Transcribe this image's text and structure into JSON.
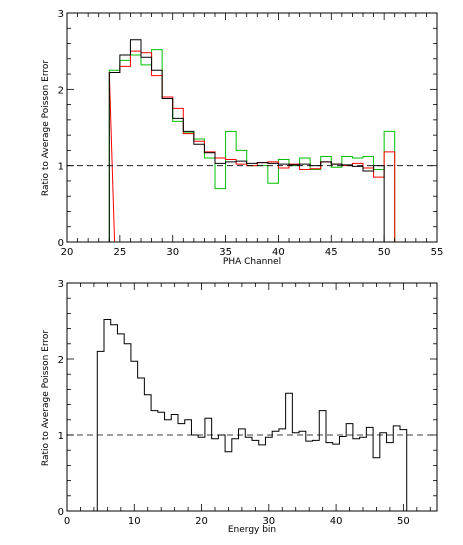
{
  "colors": {
    "black_series": "#000000",
    "red_series": "#ff0000",
    "green_series": "#00c000",
    "reference_line": "#000000"
  },
  "chart_data": [
    {
      "type": "line",
      "step": "histogram",
      "xlabel": "PHA Channel",
      "ylabel": "Ratio to Average Poisson Error",
      "xlim": [
        20,
        55
      ],
      "ylim": [
        0,
        3
      ],
      "xticks": [
        20,
        25,
        30,
        35,
        40,
        45,
        50,
        55
      ],
      "yticks": [
        0,
        1,
        2,
        3
      ],
      "reference_line": {
        "y": 1,
        "style": "dashed"
      },
      "grid": false,
      "legend": "none",
      "series": [
        {
          "color": "#000000",
          "x": [
            24,
            25,
            26,
            27,
            28,
            29,
            30,
            31,
            32,
            33,
            34,
            35,
            36,
            37,
            38,
            39,
            40,
            41,
            42,
            43,
            44,
            45,
            46,
            47,
            48,
            49
          ],
          "values": [
            2.22,
            2.45,
            2.65,
            2.42,
            2.25,
            1.88,
            1.62,
            1.45,
            1.28,
            1.17,
            1.03,
            1.05,
            1.06,
            1.03,
            1.04,
            1.03,
            1.02,
            1.01,
            1.02,
            1.0,
            1.05,
            1.02,
            1.01,
            0.99,
            0.93,
            1.0
          ]
        },
        {
          "color": "#ff0000",
          "x": [
            23.5,
            24,
            25,
            26,
            27,
            28,
            29,
            30,
            31,
            32,
            33,
            34,
            35,
            36,
            37,
            38,
            39,
            40,
            41,
            42,
            43,
            44,
            45,
            46,
            47,
            48,
            49,
            50
          ],
          "values": [
            0,
            2.22,
            2.3,
            2.5,
            2.48,
            2.18,
            1.9,
            1.75,
            1.42,
            1.32,
            1.18,
            1.1,
            1.08,
            1.02,
            1.0,
            1.04,
            1.05,
            0.97,
            1.02,
            0.95,
            0.96,
            1.05,
            1.02,
            1.0,
            1.03,
            0.97,
            0.85,
            1.18
          ]
        },
        {
          "color": "#00c000",
          "x": [
            24,
            25,
            26,
            27,
            28,
            29,
            30,
            31,
            32,
            33,
            34,
            35,
            36,
            37,
            38,
            39,
            40,
            41,
            42,
            43,
            44,
            45,
            46,
            47,
            48,
            49,
            50
          ],
          "values": [
            2.25,
            2.38,
            2.45,
            2.32,
            2.52,
            1.88,
            1.58,
            1.43,
            1.35,
            1.1,
            0.7,
            1.45,
            1.2,
            1.0,
            1.0,
            0.77,
            1.08,
            1.0,
            1.1,
            0.95,
            1.12,
            0.98,
            1.12,
            1.1,
            1.12,
            0.95,
            1.45
          ]
        }
      ]
    },
    {
      "type": "line",
      "step": "histogram",
      "xlabel": "Energy bin",
      "ylabel": "Ratio to Average Poisson Error",
      "xlim": [
        0,
        55
      ],
      "ylim": [
        0,
        3
      ],
      "xticks": [
        0,
        10,
        20,
        30,
        40,
        50
      ],
      "yticks": [
        0,
        1,
        2,
        3
      ],
      "reference_line": {
        "y": 1,
        "style": "dashed"
      },
      "grid": false,
      "legend": "none",
      "series": [
        {
          "color": "#000000",
          "x": [
            4.5,
            5.5,
            6.5,
            7.5,
            8.5,
            9.5,
            10.5,
            11.5,
            12.5,
            13.5,
            14.5,
            15.5,
            16.5,
            17.5,
            18.5,
            19.5,
            20.5,
            21.5,
            22.5,
            23.5,
            24.5,
            25.5,
            26.5,
            27.5,
            28.5,
            29.5,
            30.5,
            31.5,
            32.5,
            33.5,
            34.5,
            35.5,
            36.5,
            37.5,
            38.5,
            39.5,
            40.5,
            41.5,
            42.5,
            43.5,
            44.5,
            45.5,
            46.5,
            47.5,
            48.5,
            49.5
          ],
          "values": [
            2.1,
            2.52,
            2.45,
            2.33,
            2.2,
            1.97,
            1.75,
            1.53,
            1.32,
            1.3,
            1.2,
            1.27,
            1.15,
            1.2,
            1.0,
            0.97,
            1.22,
            0.95,
            1.0,
            0.78,
            0.95,
            1.08,
            0.97,
            0.93,
            0.87,
            0.97,
            1.05,
            1.08,
            1.55,
            1.03,
            1.05,
            0.92,
            0.93,
            1.32,
            0.9,
            0.88,
            0.98,
            1.15,
            0.95,
            0.97,
            1.1,
            0.7,
            1.03,
            0.9,
            1.12,
            1.07
          ]
        }
      ]
    }
  ]
}
